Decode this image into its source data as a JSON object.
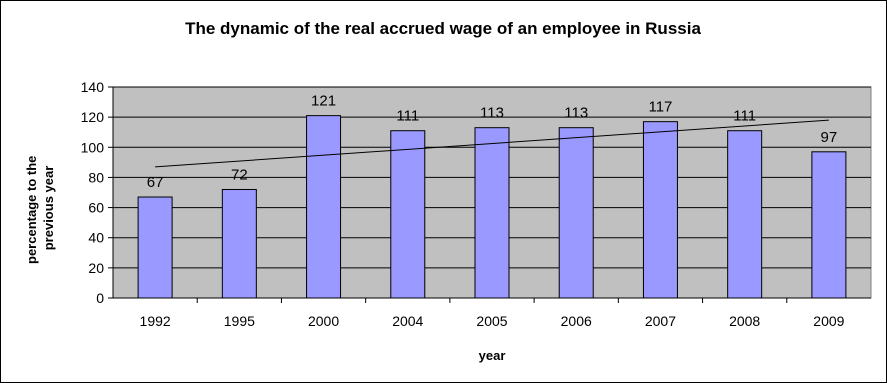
{
  "chart_data": {
    "type": "bar",
    "title": "The dynamic of the real accrued wage of an employee in Russia",
    "xlabel": "year",
    "ylabel_lines": [
      "percentage to the",
      "previous year"
    ],
    "categories": [
      "1992",
      "1995",
      "2000",
      "2004",
      "2005",
      "2006",
      "2007",
      "2008",
      "2009"
    ],
    "values": [
      67,
      72,
      121,
      111,
      113,
      113,
      117,
      111,
      97
    ],
    "data_labels": [
      "67",
      "72",
      "121",
      "111",
      "113",
      "113",
      "117",
      "111",
      "97"
    ],
    "ylim": [
      0,
      140
    ],
    "yticks": [
      0,
      20,
      40,
      60,
      80,
      100,
      120,
      140
    ],
    "ytick_labels": [
      "0",
      "20",
      "40",
      "60",
      "80",
      "100",
      "120",
      "140"
    ],
    "trendline": {
      "type": "linear",
      "start": 87,
      "end": 118
    },
    "grid": true,
    "legend": "none",
    "colors": {
      "bar_fill": "#9999ff",
      "bar_stroke": "#000000",
      "plot_background": "#c0c0c0",
      "gridline": "#000000",
      "trendline": "#000000"
    }
  }
}
